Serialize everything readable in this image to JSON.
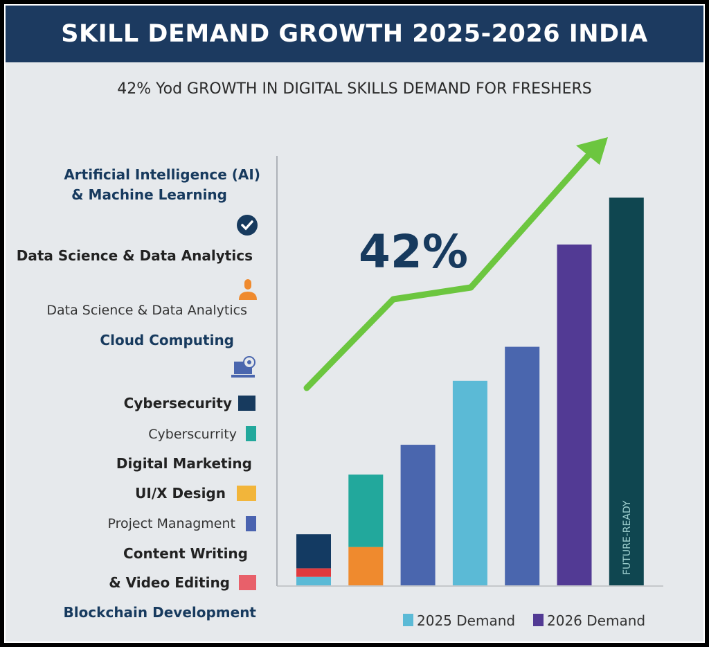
{
  "title": "SKILL DEMAND GROWTH 2025-2026 INDIA",
  "subtitle": "42% Yod GROWTH IN DIGITAL SKILLS DEMAND FOR FRESHERS",
  "skills_list": [
    {
      "text": "Artificial Intelligence (AI)"
    },
    {
      "text": "& Machine Learning"
    },
    {
      "text": "Data Science & Data Analytics"
    },
    {
      "text": "Data Science & Data Analytics"
    },
    {
      "text": "Cloud Computing"
    },
    {
      "text": "Cybersecurity",
      "swatch": "#173a5e"
    },
    {
      "text": "Cyberscurrity",
      "swatch": "#22a89c"
    },
    {
      "text": "Digital Marketing"
    },
    {
      "text": "UI/X Design",
      "swatch": "#f2b53a"
    },
    {
      "text": "Project Managment",
      "swatch": "#4a63b0"
    },
    {
      "text": "Content Writing"
    },
    {
      "text": "& Video Editing",
      "swatch": "#e8606a"
    },
    {
      "text": "Blockchain Development"
    }
  ],
  "icons": [
    "check-circle-icon",
    "person-icon",
    "laptop-gear-icon"
  ],
  "chart_data": {
    "type": "bar",
    "title": "SKILL DEMAND GROWTH 2025-2026 INDIA",
    "axes_ticks": "none",
    "grid": false,
    "value_scale": "relative (no axis labels printed)",
    "ylim": [
      0,
      100
    ],
    "bars": [
      {
        "segments": [
          {
            "value": 2,
            "color": "#5bbad6"
          },
          {
            "value": 2,
            "color": "#e03a3e"
          },
          {
            "value": 8,
            "color": "#133a62"
          }
        ]
      },
      {
        "segments": [
          {
            "value": 9,
            "color": "#ef8a2e"
          },
          {
            "value": 17,
            "color": "#22a89c"
          }
        ]
      },
      {
        "segments": [
          {
            "value": 33,
            "color": "#4a66ae"
          }
        ]
      },
      {
        "segments": [
          {
            "value": 48,
            "color": "#5bbad6"
          }
        ]
      },
      {
        "segments": [
          {
            "value": 56,
            "color": "#4a66ae"
          }
        ]
      },
      {
        "segments": [
          {
            "value": 80,
            "color": "#523a94"
          }
        ]
      },
      {
        "segments": [
          {
            "value": 91,
            "color": "#0f4650"
          }
        ],
        "label": "FUTURE-READY"
      }
    ],
    "trend_arrow": {
      "color": "#6cc63f",
      "points": [
        0,
        21,
        24,
        58
      ]
    },
    "annotation": "42%",
    "legend": [
      {
        "name": "2025 Demand",
        "color": "#5bbad6"
      },
      {
        "name": "2026 Demand",
        "color": "#523a94"
      }
    ],
    "legend_position": "bottom-right"
  }
}
